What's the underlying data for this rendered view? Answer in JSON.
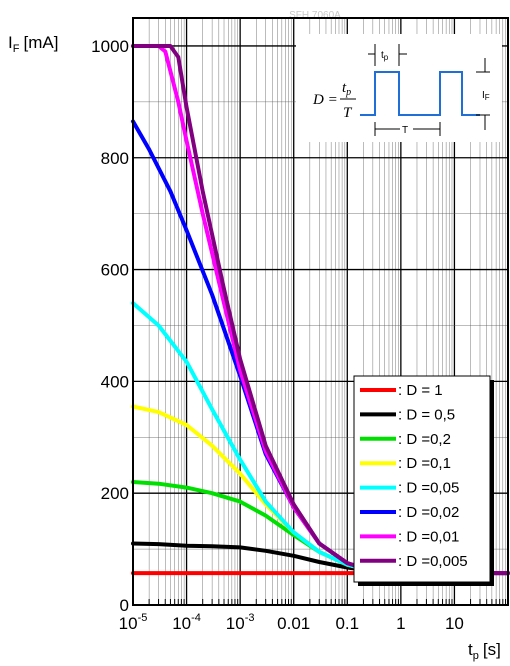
{
  "watermark": "SFH 7060A",
  "chart_data": {
    "type": "line",
    "title": "",
    "ylabel": "I",
    "ylabel_sub": "F",
    "ylabel_unit": "[mA]",
    "xlabel": "t",
    "xlabel_sub": "p",
    "xlabel_unit": "[s]",
    "x_scale": "log",
    "xlim": [
      1e-05,
      100
    ],
    "ylim": [
      0,
      1050
    ],
    "grid": true,
    "legend_position": "bottom-right",
    "y_ticks": [
      0,
      200,
      400,
      600,
      800,
      1000
    ],
    "x_ticks": [
      {
        "value": 1e-05,
        "base": "10",
        "exp": "-5"
      },
      {
        "value": 0.0001,
        "base": "10",
        "exp": "-4"
      },
      {
        "value": 0.001,
        "base": "10",
        "exp": "-3"
      },
      {
        "value": 0.01,
        "label": "0.01"
      },
      {
        "value": 0.1,
        "label": "0.1"
      },
      {
        "value": 1,
        "label": "1"
      },
      {
        "value": 10,
        "label": "10"
      }
    ],
    "series": [
      {
        "name": ": D = 1",
        "color": "#ff0000",
        "x": [
          1e-05,
          100
        ],
        "y": [
          57,
          57
        ]
      },
      {
        "name": ": D = 0,5",
        "color": "#000000",
        "x": [
          1e-05,
          3e-05,
          0.0001,
          0.0003,
          0.001,
          0.003,
          0.01,
          0.03,
          0.1,
          0.2,
          0.5,
          1,
          100
        ],
        "y": [
          110,
          109,
          106,
          105,
          103,
          97,
          88,
          77,
          67,
          63,
          60,
          58,
          57
        ]
      },
      {
        "name": ": D =0,2",
        "color": "#00e000",
        "x": [
          1e-05,
          3e-05,
          0.0001,
          0.0003,
          0.001,
          0.003,
          0.01,
          0.03,
          0.1,
          0.2,
          0.5,
          1,
          100
        ],
        "y": [
          220,
          217,
          210,
          200,
          185,
          160,
          125,
          95,
          72,
          65,
          60,
          58,
          57
        ]
      },
      {
        "name": ": D =0,1",
        "color": "#ffff00",
        "x": [
          1e-05,
          3e-05,
          0.0001,
          0.0003,
          0.001,
          0.003,
          0.01,
          0.03,
          0.1,
          0.2,
          0.5,
          1,
          100
        ],
        "y": [
          355,
          345,
          322,
          285,
          235,
          180,
          130,
          95,
          72,
          65,
          60,
          58,
          57
        ]
      },
      {
        "name": ": D =0,05",
        "color": "#00ffff",
        "x": [
          1e-05,
          3e-05,
          0.0001,
          0.0003,
          0.001,
          0.003,
          0.01,
          0.03,
          0.1,
          0.2,
          0.5,
          1,
          100
        ],
        "y": [
          540,
          500,
          435,
          350,
          260,
          185,
          130,
          95,
          72,
          65,
          60,
          58,
          57
        ]
      },
      {
        "name": ": D =0,02",
        "color": "#0000ff",
        "x": [
          1e-05,
          2e-05,
          5e-05,
          0.0001,
          0.0003,
          0.001,
          0.003,
          0.01,
          0.03,
          0.1,
          0.2,
          0.5,
          1,
          100
        ],
        "y": [
          865,
          815,
          740,
          670,
          555,
          410,
          270,
          175,
          110,
          75,
          66,
          60,
          58,
          57
        ]
      },
      {
        "name": ": D =0,01",
        "color": "#ff00ff",
        "x": [
          1e-05,
          3e-05,
          4e-05,
          7e-05,
          0.0001,
          0.0002,
          0.0005,
          0.001,
          0.003,
          0.01,
          0.03,
          0.1,
          0.2,
          0.5,
          1,
          100
        ],
        "y": [
          1000,
          1000,
          990,
          900,
          830,
          700,
          540,
          420,
          275,
          175,
          110,
          75,
          66,
          60,
          58,
          57
        ]
      },
      {
        "name": ": D =0,005",
        "color": "#800080",
        "x": [
          1e-05,
          5e-05,
          7e-05,
          0.0001,
          0.0002,
          0.0005,
          0.001,
          0.003,
          0.01,
          0.03,
          0.1,
          0.2,
          0.5,
          1,
          100
        ],
        "y": [
          1000,
          1000,
          980,
          890,
          740,
          565,
          440,
          285,
          180,
          110,
          75,
          66,
          60,
          58,
          57
        ]
      }
    ]
  },
  "inset": {
    "formula_lhs": "D =",
    "formula_num": "t",
    "formula_num_sub": "p",
    "formula_den": "T",
    "pulse_label": "t",
    "pulse_label_sub": "p",
    "amplitude_label": "I",
    "amplitude_label_sub": "F",
    "period_label": "T"
  }
}
